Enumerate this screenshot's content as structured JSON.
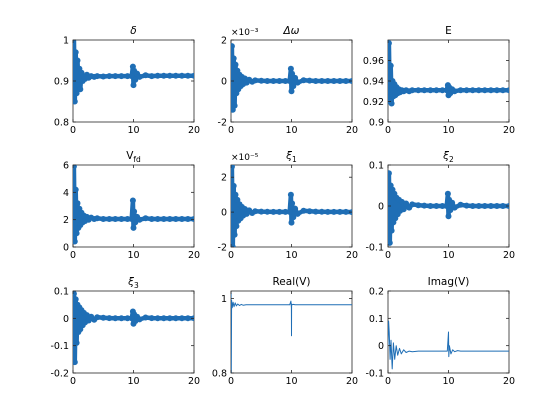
{
  "chart_data": [
    {
      "type": "scatter",
      "title": "δ",
      "title_italic": true,
      "xlim": [
        0,
        20
      ],
      "ylim": [
        0.8,
        1.0
      ],
      "xticks": [
        "0",
        "10",
        "20"
      ],
      "yticks": [
        "0.8",
        "0.9",
        "1"
      ],
      "x": [
        0,
        0.15,
        0.3,
        0.45,
        0.6,
        0.75,
        0.9,
        1.05,
        1.2,
        1.4,
        1.6,
        1.8,
        2.0,
        2.3,
        2.6,
        3.0,
        3.5,
        4.0,
        5,
        6,
        7,
        8,
        9,
        9.7,
        9.9,
        10.0,
        10.1,
        10.3,
        10.6,
        11,
        12,
        13,
        14,
        15,
        16,
        17,
        18,
        19,
        20
      ],
      "y": [
        0.9,
        1.01,
        0.85,
        0.97,
        0.87,
        0.95,
        0.89,
        0.93,
        0.88,
        0.92,
        0.9,
        0.91,
        0.905,
        0.915,
        0.908,
        0.912,
        0.91,
        0.912,
        0.911,
        0.912,
        0.912,
        0.912,
        0.912,
        0.912,
        0.935,
        0.89,
        0.925,
        0.903,
        0.918,
        0.91,
        0.914,
        0.912,
        0.913,
        0.913,
        0.913,
        0.913,
        0.913,
        0.913,
        0.913
      ],
      "color": "#1f6eb5"
    },
    {
      "type": "scatter",
      "title": "Δω",
      "title_italic": true,
      "multiplier": "×10⁻³",
      "xlim": [
        0,
        20
      ],
      "ylim": [
        -2,
        2
      ],
      "xticks": [
        "0",
        "10",
        "20"
      ],
      "yticks": [
        "-2",
        "0",
        "2"
      ],
      "x": [
        0,
        0.15,
        0.3,
        0.45,
        0.6,
        0.75,
        0.9,
        1.05,
        1.2,
        1.4,
        1.6,
        1.8,
        2.0,
        2.3,
        2.6,
        3.0,
        3.5,
        4.0,
        5,
        6,
        7,
        8,
        9,
        9.7,
        9.9,
        10.0,
        10.1,
        10.3,
        10.6,
        11,
        12,
        13,
        14,
        15,
        16,
        17,
        18,
        19,
        20
      ],
      "y": [
        0,
        1.7,
        -1.4,
        1.1,
        -1.2,
        0.8,
        -0.6,
        0.5,
        -0.4,
        0.3,
        -0.25,
        0.2,
        -0.15,
        0.12,
        -0.08,
        0.06,
        -0.04,
        0.03,
        0.01,
        0,
        0,
        0,
        0,
        0,
        0.6,
        -0.5,
        0.35,
        -0.25,
        0.15,
        -0.08,
        0.04,
        0.02,
        0,
        0,
        0,
        0,
        0,
        0,
        0
      ],
      "color": "#1f6eb5"
    },
    {
      "type": "scatter",
      "title": "E",
      "title_italic": false,
      "xlim": [
        0,
        20
      ],
      "ylim": [
        0.9,
        0.98
      ],
      "xticks": [
        "0",
        "10",
        "20"
      ],
      "yticks": [
        "0.9",
        "0.92",
        "0.94",
        "0.96"
      ],
      "x": [
        0,
        0.15,
        0.3,
        0.45,
        0.6,
        0.75,
        0.9,
        1.05,
        1.2,
        1.4,
        1.6,
        1.8,
        2.0,
        2.3,
        2.6,
        3.0,
        3.5,
        4.0,
        5,
        6,
        7,
        8,
        9,
        9.7,
        9.9,
        10.0,
        10.1,
        10.3,
        10.6,
        11,
        12,
        13,
        14,
        15,
        16,
        17,
        18,
        19,
        20
      ],
      "y": [
        0.93,
        0.977,
        0.92,
        0.955,
        0.918,
        0.94,
        0.925,
        0.937,
        0.926,
        0.934,
        0.928,
        0.932,
        0.929,
        0.931,
        0.93,
        0.931,
        0.93,
        0.931,
        0.931,
        0.931,
        0.931,
        0.931,
        0.931,
        0.931,
        0.936,
        0.926,
        0.934,
        0.928,
        0.932,
        0.93,
        0.931,
        0.931,
        0.931,
        0.931,
        0.931,
        0.931,
        0.931,
        0.931,
        0.931
      ],
      "color": "#1f6eb5"
    },
    {
      "type": "scatter",
      "title": "V",
      "title_sub": "fd",
      "title_italic": false,
      "xlim": [
        0,
        20
      ],
      "ylim": [
        0,
        6
      ],
      "xticks": [
        "0",
        "10",
        "20"
      ],
      "yticks": [
        "0",
        "2",
        "4",
        "6"
      ],
      "x": [
        0,
        0.15,
        0.3,
        0.45,
        0.6,
        0.75,
        0.9,
        1.05,
        1.2,
        1.4,
        1.6,
        1.8,
        2.0,
        2.3,
        2.6,
        3.0,
        3.5,
        4.0,
        5,
        6,
        7,
        8,
        9,
        9.7,
        9.9,
        10.0,
        10.1,
        10.3,
        10.6,
        11,
        12,
        13,
        14,
        15,
        16,
        17,
        18,
        19,
        20
      ],
      "y": [
        2.0,
        5.9,
        0.4,
        4.2,
        1.0,
        3.2,
        1.4,
        2.8,
        1.6,
        2.5,
        1.8,
        2.3,
        1.9,
        2.2,
        2.0,
        2.15,
        2.05,
        2.1,
        2.05,
        2.05,
        2.05,
        2.05,
        2.05,
        2.05,
        3.4,
        1.4,
        2.6,
        1.8,
        2.2,
        2.0,
        2.1,
        2.05,
        2.05,
        2.05,
        2.05,
        2.05,
        2.05,
        2.05,
        2.05
      ],
      "color": "#1f6eb5"
    },
    {
      "type": "scatter",
      "title": "ξ",
      "title_sub": "1",
      "title_italic": true,
      "multiplier": "×10⁻⁵",
      "xlim": [
        0,
        20
      ],
      "ylim": [
        -2,
        2.7
      ],
      "xticks": [
        "0",
        "10",
        "20"
      ],
      "yticks": [
        "-2",
        "0",
        "2"
      ],
      "x": [
        0,
        0.15,
        0.3,
        0.45,
        0.6,
        0.75,
        0.9,
        1.05,
        1.2,
        1.4,
        1.6,
        1.8,
        2.0,
        2.3,
        2.6,
        3.0,
        3.5,
        4.0,
        5,
        6,
        7,
        8,
        9,
        9.7,
        9.9,
        10.0,
        10.1,
        10.3,
        10.6,
        11,
        12,
        13,
        14,
        15,
        16,
        17,
        18,
        19,
        20
      ],
      "y": [
        0,
        2.6,
        -2.0,
        1.5,
        -1.3,
        1.0,
        -0.8,
        0.7,
        -0.5,
        0.45,
        -0.35,
        0.3,
        -0.2,
        0.18,
        -0.1,
        0.1,
        -0.05,
        0.05,
        0.03,
        0.02,
        0.01,
        0.01,
        0.01,
        0.01,
        1.0,
        -0.6,
        0.5,
        -0.3,
        0.2,
        -0.1,
        0.08,
        0.05,
        0.03,
        0.02,
        0.01,
        0.01,
        0.01,
        0.01,
        0
      ],
      "color": "#1f6eb5"
    },
    {
      "type": "scatter",
      "title": "ξ",
      "title_sub": "2",
      "title_italic": true,
      "xlim": [
        0,
        20
      ],
      "ylim": [
        -0.1,
        0.1
      ],
      "xticks": [
        "0",
        "10",
        "20"
      ],
      "yticks": [
        "-0.1",
        "0",
        "0.1"
      ],
      "x": [
        0,
        0.15,
        0.3,
        0.45,
        0.6,
        0.75,
        0.9,
        1.05,
        1.2,
        1.4,
        1.6,
        1.8,
        2.0,
        2.3,
        2.6,
        3.0,
        3.5,
        4.0,
        5,
        6,
        7,
        8,
        9,
        9.7,
        9.9,
        10.0,
        10.1,
        10.3,
        10.6,
        11,
        12,
        13,
        14,
        15,
        16,
        17,
        18,
        19,
        20
      ],
      "y": [
        0,
        0.08,
        -0.09,
        0.05,
        -0.06,
        0.04,
        -0.04,
        0.03,
        -0.03,
        0.02,
        -0.02,
        0.015,
        -0.012,
        0.01,
        -0.008,
        0.006,
        -0.004,
        0.004,
        0.002,
        0.001,
        0,
        0,
        0,
        0,
        0.03,
        -0.025,
        0.015,
        -0.01,
        0.008,
        -0.004,
        0.003,
        0.001,
        0,
        0,
        0,
        0,
        0,
        0,
        0
      ],
      "color": "#1f6eb5"
    },
    {
      "type": "scatter",
      "title": "ξ",
      "title_sub": "3",
      "title_italic": true,
      "xlim": [
        0,
        20
      ],
      "ylim": [
        -0.2,
        0.1
      ],
      "xticks": [
        "0",
        "10",
        "20"
      ],
      "yticks": [
        "-0.2",
        "-0.1",
        "0",
        "0.1"
      ],
      "x": [
        0,
        0.15,
        0.3,
        0.45,
        0.6,
        0.75,
        0.9,
        1.05,
        1.2,
        1.4,
        1.6,
        1.8,
        2.0,
        2.3,
        2.6,
        3.0,
        3.5,
        4.0,
        5,
        6,
        7,
        8,
        9,
        9.7,
        9.9,
        10.0,
        10.1,
        10.3,
        10.6,
        11,
        12,
        13,
        14,
        15,
        16,
        17,
        18,
        19,
        20
      ],
      "y": [
        0,
        0.09,
        -0.16,
        0.07,
        -0.09,
        0.05,
        -0.05,
        0.04,
        -0.04,
        0.03,
        -0.025,
        0.02,
        -0.015,
        0.012,
        -0.008,
        0.006,
        -0.005,
        0.004,
        0.002,
        0.001,
        0,
        0,
        0,
        0,
        0.025,
        -0.02,
        0.015,
        -0.01,
        0.006,
        -0.004,
        0.003,
        0.001,
        0,
        0,
        0,
        0,
        0,
        0,
        0
      ],
      "color": "#1f6eb5"
    },
    {
      "type": "line",
      "title": "Real(V)",
      "title_italic": false,
      "xlim": [
        0,
        20
      ],
      "ylim": [
        0.8,
        1.02
      ],
      "xticks": [
        "0",
        "10",
        "20"
      ],
      "yticks": [
        "0.8",
        "1"
      ],
      "x": [
        0,
        0.02,
        0.05,
        0.1,
        0.2,
        0.35,
        0.5,
        0.7,
        0.9,
        1.1,
        1.4,
        1.7,
        2.0,
        2.5,
        3.0,
        4,
        5,
        6,
        7,
        8,
        9,
        9.7,
        9.9,
        9.98,
        10.0,
        10.02,
        10.1,
        10.3,
        10.6,
        11,
        12,
        13,
        14,
        15,
        16,
        17,
        18,
        19,
        20
      ],
      "y": [
        0.8,
        1.015,
        0.8,
        0.995,
        0.975,
        0.99,
        0.978,
        0.988,
        0.98,
        0.985,
        0.981,
        0.984,
        0.982,
        0.983,
        0.983,
        0.983,
        0.983,
        0.983,
        0.983,
        0.983,
        0.983,
        0.983,
        0.993,
        0.975,
        0.9,
        0.985,
        0.983,
        0.984,
        0.983,
        0.983,
        0.983,
        0.983,
        0.983,
        0.983,
        0.983,
        0.983,
        0.983,
        0.983,
        0.983
      ],
      "color": "#1f6eb5"
    },
    {
      "type": "line",
      "title": "Imag(V)",
      "title_italic": false,
      "xlim": [
        0,
        20
      ],
      "ylim": [
        -0.1,
        0.2
      ],
      "xticks": [
        "0",
        "10",
        "20"
      ],
      "yticks": [
        "-0.1",
        "0",
        "0.1",
        "0.2"
      ],
      "x": [
        0,
        0.1,
        0.2,
        0.35,
        0.5,
        0.7,
        0.9,
        1.1,
        1.35,
        1.6,
        1.9,
        2.2,
        2.6,
        3.0,
        3.5,
        4,
        5,
        6,
        7,
        8,
        9,
        9.8,
        10.0,
        10.05,
        10.15,
        10.4,
        10.7,
        11,
        11.5,
        12,
        13,
        14,
        15,
        16,
        17,
        18,
        19,
        20
      ],
      "y": [
        0.0,
        0.09,
        0.05,
        -0.05,
        0.02,
        -0.085,
        0.01,
        -0.05,
        0.0,
        -0.035,
        -0.01,
        -0.03,
        -0.015,
        -0.025,
        -0.02,
        -0.022,
        -0.02,
        -0.02,
        -0.02,
        -0.02,
        -0.02,
        -0.02,
        0.05,
        -0.04,
        0.0,
        -0.03,
        -0.015,
        -0.022,
        -0.018,
        -0.02,
        -0.02,
        -0.02,
        -0.02,
        -0.02,
        -0.02,
        -0.02,
        -0.02,
        -0.02
      ],
      "color": "#1f6eb5"
    }
  ]
}
